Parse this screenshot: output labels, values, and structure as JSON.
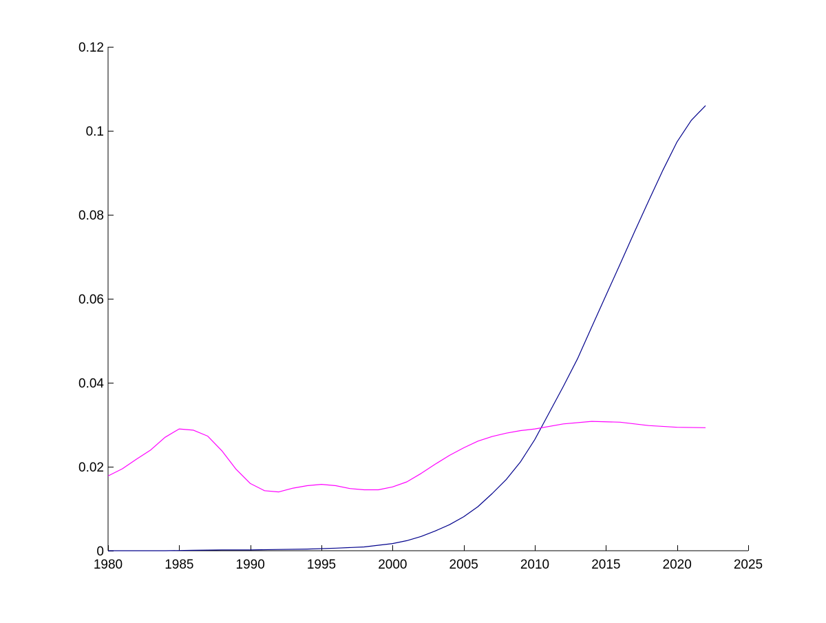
{
  "chart_data": {
    "type": "line",
    "title": "",
    "xlabel": "",
    "ylabel": "",
    "xlim": [
      1980,
      2025
    ],
    "ylim": [
      0,
      0.12
    ],
    "x_ticks": [
      1980,
      1985,
      1990,
      1995,
      2000,
      2005,
      2010,
      2015,
      2020,
      2025
    ],
    "x_tick_labels": [
      "1980",
      "1985",
      "1990",
      "1995",
      "2000",
      "2005",
      "2010",
      "2015",
      "2020",
      "2025"
    ],
    "y_ticks": [
      0,
      0.02,
      0.04,
      0.06,
      0.08,
      0.1,
      0.12
    ],
    "y_tick_labels": [
      "0",
      "0.02",
      "0.04",
      "0.06",
      "0.08",
      "0.1",
      "0.12"
    ],
    "grid": false,
    "legend": "none",
    "series": [
      {
        "color": "#00008b",
        "x": [
          1980,
          1982,
          1984,
          1986,
          1988,
          1990,
          1992,
          1994,
          1996,
          1998,
          2000,
          2001,
          2002,
          2003,
          2004,
          2005,
          2006,
          2007,
          2008,
          2009,
          2010,
          2011,
          2012,
          2013,
          2014,
          2015,
          2016,
          2017,
          2018,
          2019,
          2020,
          2021,
          2022
        ],
        "values": [
          0,
          0,
          0,
          0.0001,
          0.0002,
          0.0002,
          0.0003,
          0.0004,
          0.0006,
          0.0009,
          0.0017,
          0.0024,
          0.0034,
          0.0047,
          0.0062,
          0.0081,
          0.0105,
          0.0136,
          0.017,
          0.0212,
          0.0265,
          0.0328,
          0.0391,
          0.0457,
          0.0533,
          0.0608,
          0.0683,
          0.0759,
          0.0833,
          0.0906,
          0.0974,
          0.1025,
          0.106
        ]
      },
      {
        "color": "#ff00ff",
        "x": [
          1980,
          1981,
          1982,
          1983,
          1984,
          1985,
          1986,
          1987,
          1988,
          1989,
          1990,
          1991,
          1992,
          1993,
          1994,
          1995,
          1996,
          1997,
          1998,
          1999,
          2000,
          2001,
          2002,
          2003,
          2004,
          2005,
          2006,
          2007,
          2008,
          2009,
          2010,
          2012,
          2014,
          2016,
          2018,
          2020,
          2022
        ],
        "values": [
          0.0178,
          0.0195,
          0.0218,
          0.024,
          0.027,
          0.029,
          0.0287,
          0.0273,
          0.0238,
          0.0194,
          0.016,
          0.0143,
          0.014,
          0.0149,
          0.0155,
          0.0158,
          0.0155,
          0.0148,
          0.0145,
          0.0145,
          0.0152,
          0.0164,
          0.0184,
          0.0206,
          0.0227,
          0.0245,
          0.0261,
          0.0272,
          0.028,
          0.0286,
          0.029,
          0.0302,
          0.0308,
          0.0306,
          0.0298,
          0.0294,
          0.0293
        ]
      }
    ]
  }
}
